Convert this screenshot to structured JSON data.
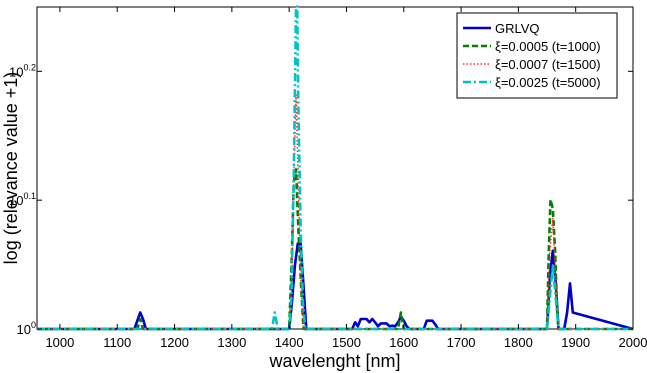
{
  "chart_data": {
    "type": "line",
    "title": "",
    "xlabel": "wavelenght [nm]",
    "ylabel": "log (relevance value +1)",
    "xlim": [
      960,
      2000
    ],
    "ylim": [
      1.0,
      1.778
    ],
    "yscale": "log",
    "grid": false,
    "legend_placement": "top-right",
    "x_ticks": [
      1000,
      1100,
      1200,
      1300,
      1400,
      1500,
      1600,
      1700,
      1800,
      1900,
      2000
    ],
    "x_tick_labels": [
      "1000",
      "1100",
      "1200",
      "1300",
      "1400",
      "1500",
      "1600",
      "1700",
      "1800",
      "1900",
      "2000"
    ],
    "y_ticks": [
      {
        "value": 1.0,
        "base": "10",
        "exp": "0"
      },
      {
        "value": 1.2589,
        "base": "10",
        "exp": "0.1"
      },
      {
        "value": 1.5849,
        "base": "10",
        "exp": "0.2"
      }
    ],
    "series": [
      {
        "name": "GRLVQ",
        "color": "#0000cc",
        "style": "solid",
        "x": [
          960,
          1130,
          1135,
          1140,
          1145,
          1150,
          1400,
          1405,
          1410,
          1415,
          1420,
          1425,
          1430,
          1510,
          1515,
          1520,
          1525,
          1530,
          1535,
          1540,
          1545,
          1550,
          1555,
          1560,
          1565,
          1570,
          1575,
          1580,
          1585,
          1590,
          1595,
          1600,
          1605,
          1610,
          1635,
          1640,
          1645,
          1650,
          1655,
          1660,
          1850,
          1855,
          1860,
          1865,
          1870,
          1880,
          1885,
          1890,
          1895,
          2000
        ],
        "y": [
          1.0,
          1.0,
          1.015,
          1.03,
          1.018,
          1.0,
          1.0,
          1.05,
          1.12,
          1.165,
          1.165,
          1.08,
          1.0,
          1.0,
          1.012,
          1.005,
          1.018,
          1.018,
          1.018,
          1.012,
          1.018,
          1.012,
          1.005,
          1.01,
          1.01,
          1.01,
          1.005,
          1.006,
          1.005,
          1.012,
          1.022,
          1.015,
          1.005,
          1.0,
          1.0,
          1.015,
          1.015,
          1.015,
          1.008,
          1.0,
          1.0,
          1.1,
          1.15,
          1.09,
          1.0,
          1.0,
          1.03,
          1.085,
          1.03,
          1.0
        ]
      },
      {
        "name": "ξ=0.0005 (t=1000)",
        "color": "#008000",
        "style": "dashed",
        "x": [
          960,
          1135,
          1140,
          1145,
          1400,
          1405,
          1408,
          1412,
          1416,
          1420,
          1425,
          1590,
          1595,
          1600,
          1605,
          1850,
          1853,
          1856,
          1860,
          1864,
          1867,
          1870,
          2000
        ],
        "y": [
          1.0,
          1.0,
          1.018,
          1.0,
          1.0,
          1.15,
          1.3,
          1.33,
          1.2,
          1.1,
          1.0,
          1.0,
          1.03,
          1.0,
          1.0,
          1.0,
          1.15,
          1.26,
          1.24,
          1.15,
          1.05,
          1.0,
          1.0
        ]
      },
      {
        "name": "ξ=0.0007 (t=1500)",
        "color": "#ff2a2a",
        "style": "dotted",
        "x": [
          960,
          1400,
          1405,
          1408,
          1412,
          1416,
          1420,
          1425,
          1850,
          1855,
          1860,
          1865,
          1870,
          2000
        ],
        "y": [
          1.0,
          1.0,
          1.1,
          1.3,
          1.52,
          1.3,
          1.1,
          1.0,
          1.0,
          1.15,
          1.22,
          1.1,
          1.0,
          1.0
        ]
      },
      {
        "name": "ξ=0.0025 (t=5000)",
        "color": "#00c4c4",
        "style": "dashdot",
        "x": [
          960,
          1370,
          1375,
          1380,
          1400,
          1404,
          1408,
          1412,
          1414,
          1416,
          1420,
          1424,
          1428,
          1850,
          1855,
          1860,
          1865,
          1870,
          2000
        ],
        "y": [
          1.0,
          1.0,
          1.03,
          1.0,
          1.0,
          1.06,
          1.3,
          1.78,
          1.78,
          1.5,
          1.2,
          1.05,
          1.0,
          1.0,
          1.06,
          1.12,
          1.06,
          1.0,
          1.0
        ]
      }
    ]
  }
}
